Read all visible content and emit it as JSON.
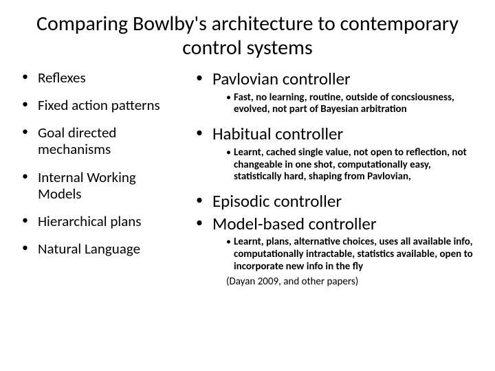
{
  "title": "Comparing Bowlby's architecture to contemporary control systems",
  "left": [
    "Reflexes",
    "Fixed action patterns",
    "Goal directed mechanisms",
    "Internal Working Models",
    "Hierarchical plans",
    "Natural Language"
  ],
  "right": {
    "pavlovian": {
      "label": "Pavlovian controller",
      "sub": "Fast, no learning, routine, outside of concsiousness, evolved, not part of Bayesian arbitration"
    },
    "habitual": {
      "label": "Habitual controller",
      "sub": "Learnt, cached single value, not open to reflection, not changeable in one shot, computationally easy, statistically hard, shaping from Pavlovian,"
    },
    "episodic": {
      "label": "Episodic controller"
    },
    "modelbased": {
      "label": "Model-based controller",
      "sub": "Learnt, plans, alternative choices, uses all available info, computationally intractable, statistics available, open to incorporate new info in the fly",
      "cite": "(Dayan 2009, and other papers)"
    }
  }
}
